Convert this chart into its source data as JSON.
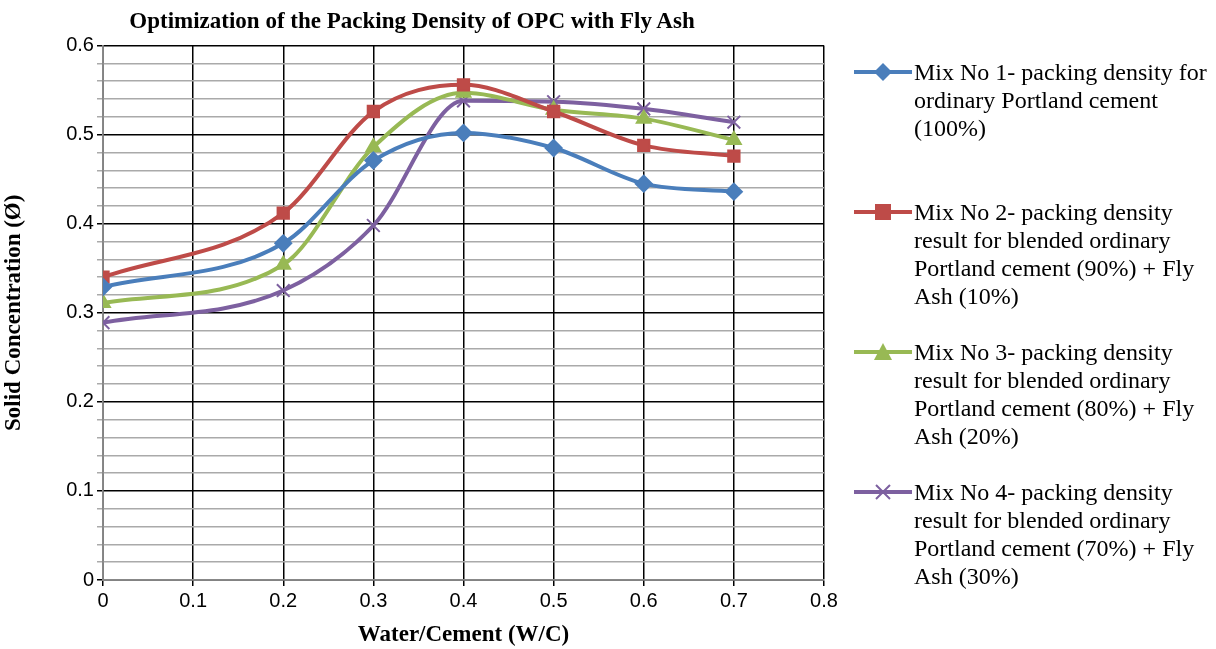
{
  "chart_data": {
    "type": "line",
    "title": "Optimization of the Packing Density of OPC with Fly Ash",
    "xlabel": "Water/Cement (W/C)",
    "ylabel": "Solid Concentration (Ø)",
    "x": [
      0,
      0.2,
      0.3,
      0.4,
      0.5,
      0.6,
      0.7
    ],
    "xlim": [
      0,
      0.8
    ],
    "xticks": [
      0,
      0.1,
      0.2,
      0.3,
      0.4,
      0.5,
      0.6,
      0.7,
      0.8
    ],
    "ylim": [
      0,
      0.6
    ],
    "yticks": [
      0,
      {
        "value": 0.02,
        "label": null
      },
      {
        "value": 0.04,
        "label": null
      },
      {
        "value": 0.06,
        "label": null
      },
      {
        "value": 0.08,
        "label": null
      },
      0.1,
      {
        "value": 0.12,
        "label": null
      },
      {
        "value": 0.14,
        "label": null
      },
      {
        "value": 0.16,
        "label": null
      },
      {
        "value": 0.18,
        "label": null
      },
      0.2,
      {
        "value": 0.22,
        "label": null
      },
      {
        "value": 0.24,
        "label": null
      },
      {
        "value": 0.26,
        "label": null
      },
      {
        "value": 0.28,
        "label": null
      },
      0.3,
      {
        "value": 0.32,
        "label": null
      },
      {
        "value": 0.34,
        "label": null
      },
      {
        "value": 0.36,
        "label": null
      },
      {
        "value": 0.38,
        "label": null
      },
      0.4,
      {
        "value": 0.42,
        "label": null
      },
      {
        "value": 0.44,
        "label": null
      },
      {
        "value": 0.46,
        "label": null
      },
      {
        "value": 0.48,
        "label": null
      },
      0.5,
      {
        "value": 0.52,
        "label": null
      },
      {
        "value": 0.54,
        "label": null
      },
      {
        "value": 0.56,
        "label": null
      },
      {
        "value": 0.58,
        "label": null
      },
      0.6
    ],
    "grid": true,
    "legend": "right",
    "series": [
      {
        "name": "Mix No 1- packing density for ordinary Portland cement (100%)",
        "color": "#4a7ebb",
        "marker": "diamond",
        "values": [
          0.329,
          0.378,
          0.471,
          0.502,
          0.485,
          0.445,
          0.436
        ]
      },
      {
        "name": "Mix No 2- packing density result for blended ordinary Portland cement (90%) + Fly Ash (10%)",
        "color": "#be4b48",
        "marker": "square",
        "values": [
          0.34,
          0.412,
          0.526,
          0.556,
          0.526,
          0.488,
          0.476
        ]
      },
      {
        "name": "Mix No 3- packing density result for blended ordinary Portland cement (80%) + Fly Ash (20%)",
        "color": "#98b954",
        "marker": "triangle",
        "values": [
          0.311,
          0.354,
          0.486,
          0.547,
          0.528,
          0.518,
          0.494
        ]
      },
      {
        "name": "Mix No 4- packing density result for blended ordinary Portland cement (70%) + Fly Ash (30%)",
        "color": "#7d60a0",
        "marker": "cross",
        "values": [
          0.289,
          0.325,
          0.398,
          0.538,
          0.537,
          0.529,
          0.514
        ]
      }
    ]
  }
}
